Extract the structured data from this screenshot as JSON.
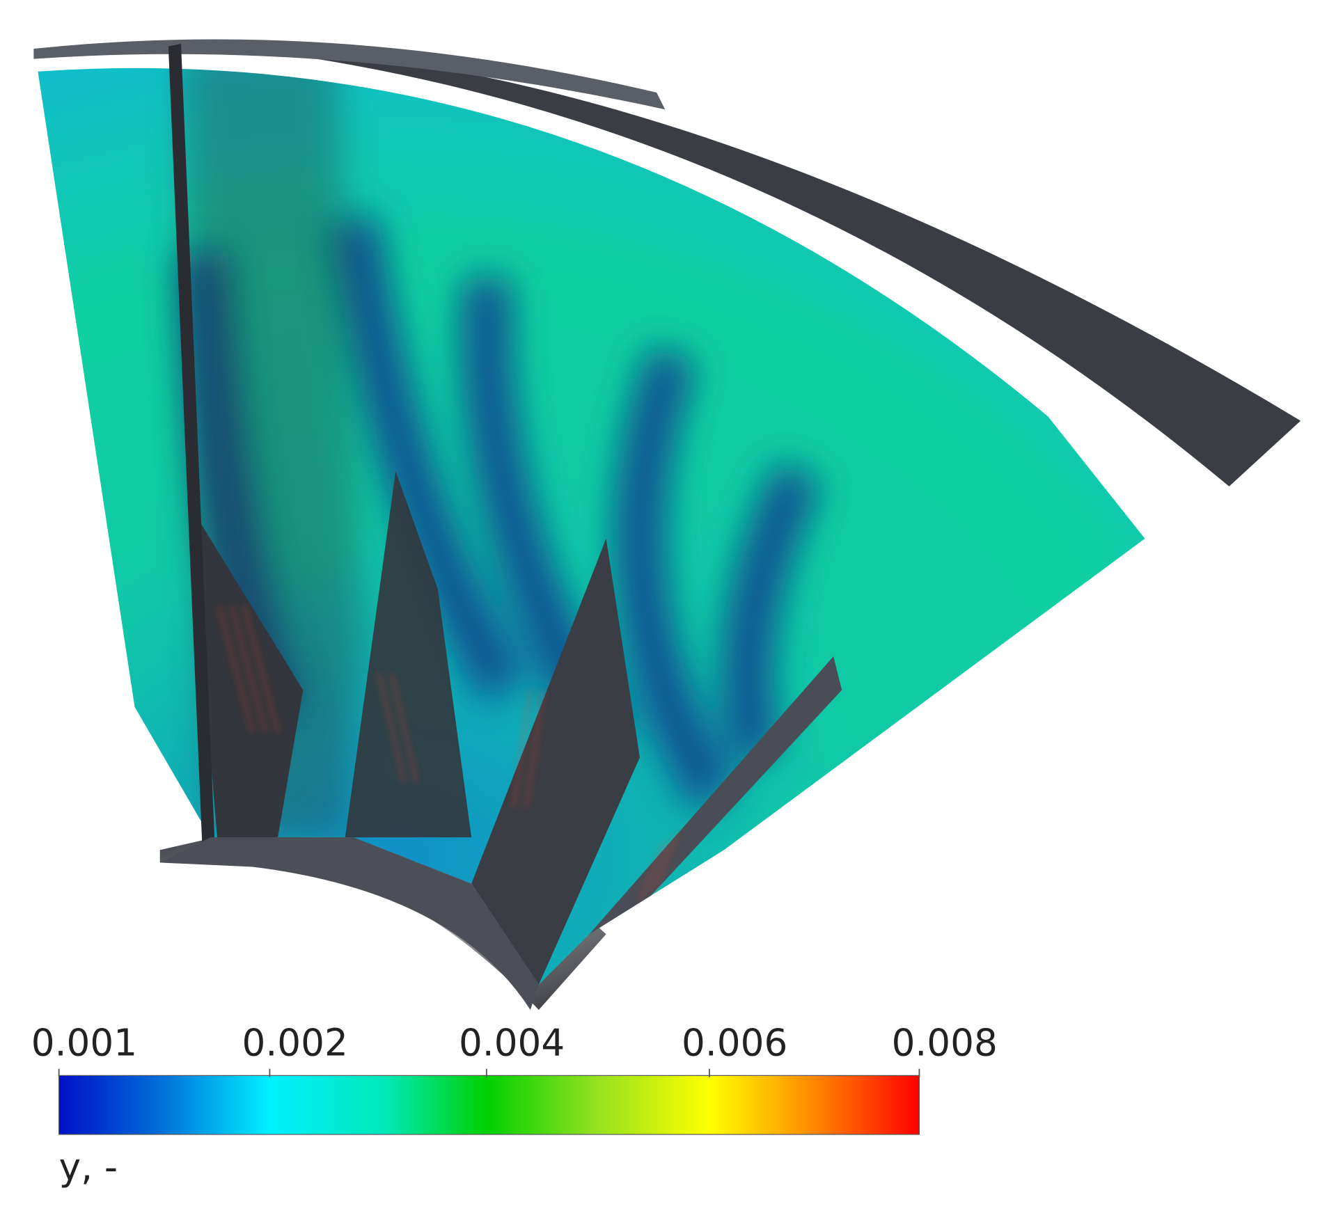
{
  "colorbar": {
    "ticks": [
      0.001,
      0.002,
      0.004,
      0.006,
      0.008
    ],
    "label": "y, -"
  }
}
